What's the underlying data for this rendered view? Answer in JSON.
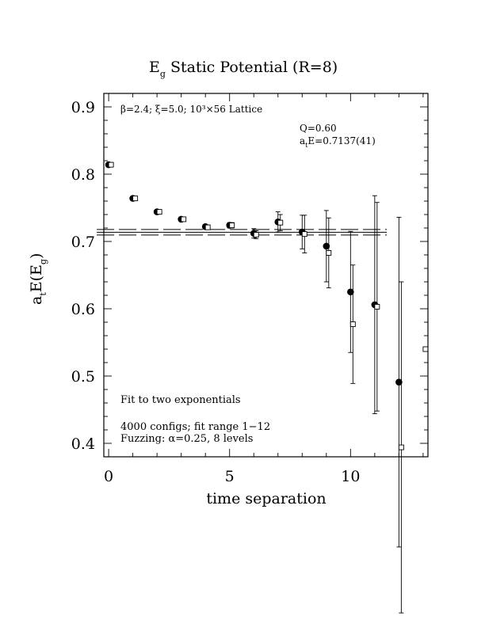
{
  "chart_data": {
    "type": "scatter",
    "title_main": "E",
    "title_sub": "g",
    "title_rest": " Static Potential (R=8)",
    "xlabel": "time separation",
    "ylabel_a": "a",
    "ylabel_t": "t",
    "ylabel_mid": "E(E",
    "ylabel_g": "g",
    "ylabel_end": ")",
    "xlim": [
      -0.2,
      13.2
    ],
    "ylim": [
      0.38,
      0.92
    ],
    "x_ticks": [
      0,
      5,
      10
    ],
    "y_ticks": [
      0.4,
      0.5,
      0.6,
      0.7,
      0.8,
      0.9
    ],
    "x_tick_labels": [
      "0",
      "5",
      "10"
    ],
    "y_tick_labels": [
      "0.4",
      "0.5",
      "0.6",
      "0.7",
      "0.8",
      "0.9"
    ],
    "annotations": {
      "lattice": "β=2.4; ξ=5.0; 10³×56 Lattice",
      "q": "Q=0.60",
      "ate_a": "a",
      "ate_t": "t",
      "ate_val": "E=0.7137(41)",
      "fit": "Fit to two exponentials",
      "configs": "4000 configs; fit range 1−12",
      "fuzzing": "Fuzzing: α=0.25, 8 levels"
    },
    "series": [
      {
        "marker": "filled-circle",
        "points": [
          {
            "x": 0,
            "y": 0.814,
            "err": 0.002
          },
          {
            "x": 1,
            "y": 0.764,
            "err": 0.002
          },
          {
            "x": 2,
            "y": 0.744,
            "err": 0.002
          },
          {
            "x": 3,
            "y": 0.733,
            "err": 0.003
          },
          {
            "x": 4,
            "y": 0.722,
            "err": 0.003
          },
          {
            "x": 5,
            "y": 0.724,
            "err": 0.004
          },
          {
            "x": 6,
            "y": 0.712,
            "err": 0.007
          },
          {
            "x": 7,
            "y": 0.729,
            "err": 0.015
          },
          {
            "x": 8,
            "y": 0.714,
            "err": 0.025
          },
          {
            "x": 9,
            "y": 0.693,
            "err": 0.053
          },
          {
            "x": 10,
            "y": 0.625,
            "err": 0.09
          },
          {
            "x": 11,
            "y": 0.606,
            "err": 0.162
          },
          {
            "x": 12,
            "y": 0.491,
            "err": 0.245
          }
        ]
      },
      {
        "marker": "open-square",
        "points": [
          {
            "x": 0,
            "y": 0.814,
            "err": 0.003
          },
          {
            "x": 1,
            "y": 0.764,
            "err": 0.002
          },
          {
            "x": 2,
            "y": 0.744,
            "err": 0.002
          },
          {
            "x": 3,
            "y": 0.733,
            "err": 0.003
          },
          {
            "x": 4,
            "y": 0.721,
            "err": 0.003
          },
          {
            "x": 5,
            "y": 0.724,
            "err": 0.004
          },
          {
            "x": 6,
            "y": 0.71,
            "err": 0.006
          },
          {
            "x": 7,
            "y": 0.728,
            "err": 0.012
          },
          {
            "x": 8,
            "y": 0.711,
            "err": 0.028
          },
          {
            "x": 9,
            "y": 0.683,
            "err": 0.052
          },
          {
            "x": 10,
            "y": 0.577,
            "err": 0.088
          },
          {
            "x": 11,
            "y": 0.603,
            "err": 0.155
          },
          {
            "x": 12,
            "y": 0.394,
            "err": 0.246
          },
          {
            "x": 13,
            "y": 0.54,
            "err": 0.0
          }
        ]
      }
    ],
    "fit": {
      "center": 0.7137,
      "err": 0.0041,
      "x_range": [
        0,
        11.5
      ]
    }
  }
}
